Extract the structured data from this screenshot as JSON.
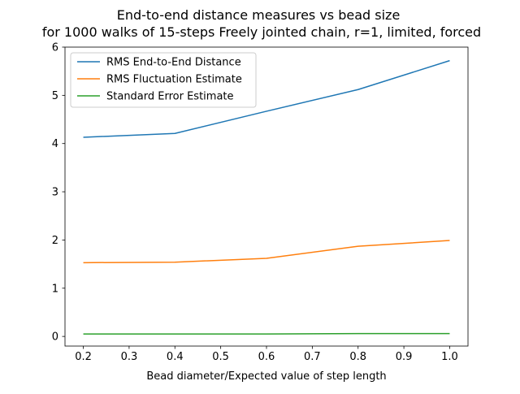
{
  "chart_data": {
    "type": "line",
    "title": "End-to-end distance measures vs bead size",
    "subtitle": "for 1000 walks of 15-steps Freely jointed chain, r=1, limited, forced",
    "xlabel": "Bead diameter/Expected value of step length",
    "ylabel": "",
    "x": [
      0.2,
      0.4,
      0.6,
      0.8,
      1.0
    ],
    "xlim": [
      0.16,
      1.04
    ],
    "ylim": [
      -0.2,
      6.0
    ],
    "xticks": [
      "0.2",
      "0.3",
      "0.4",
      "0.5",
      "0.6",
      "0.7",
      "0.8",
      "0.9",
      "1.0"
    ],
    "yticks": [
      "0",
      "1",
      "2",
      "3",
      "4",
      "5",
      "6"
    ],
    "grid": false,
    "legend_position": "top-left",
    "series": [
      {
        "name": "RMS End-to-End Distance",
        "color": "#1f77b4",
        "values": [
          4.13,
          4.21,
          4.67,
          5.12,
          5.72
        ]
      },
      {
        "name": "RMS Fluctuation Estimate",
        "color": "#ff7f0e",
        "values": [
          1.53,
          1.54,
          1.62,
          1.87,
          1.99
        ]
      },
      {
        "name": "Standard Error Estimate",
        "color": "#2ca02c",
        "values": [
          0.05,
          0.05,
          0.05,
          0.06,
          0.06
        ]
      }
    ]
  }
}
